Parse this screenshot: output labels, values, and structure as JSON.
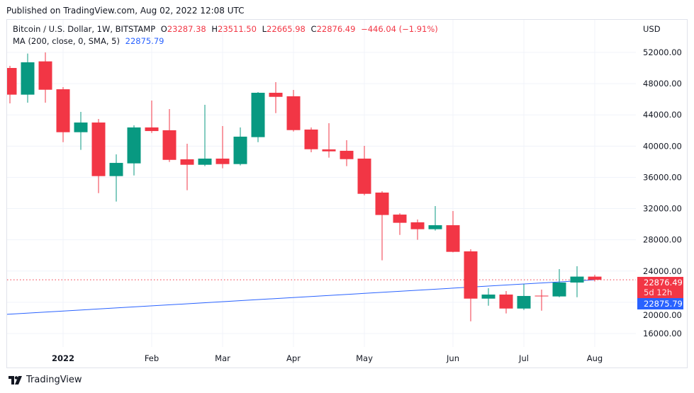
{
  "header": {
    "published": "Published on TradingView.com, Aug 02, 2022 12:08 UTC"
  },
  "legend": {
    "symbol": "Bitcoin / U.S. Dollar, 1W, BITSTAMP",
    "o_label": "O",
    "o": "23287.38",
    "h_label": "H",
    "h": "23511.50",
    "l_label": "L",
    "l": "22665.98",
    "c_label": "C",
    "c": "22876.49",
    "change": "−446.04 (−1.91%)",
    "ma_label": "MA (200, close, 0, SMA, 5)",
    "ma_value": "22875.79"
  },
  "price_axis": {
    "currency": "USD"
  },
  "price_labels": {
    "last": "22876.49",
    "countdown": "5d 12h",
    "ma": "22875.79"
  },
  "footer": {
    "brand": "TradingView"
  },
  "colors": {
    "up": "#089981",
    "down": "#f23645",
    "ma": "#2962ff",
    "grid": "#f0f3fa"
  },
  "chart_data": {
    "type": "candlestick",
    "interval": "1W",
    "ylim": [
      14000,
      54000
    ],
    "y_ticks": [
      "52000.00",
      "48000.00",
      "44000.00",
      "40000.00",
      "36000.00",
      "32000.00",
      "28000.00",
      "24000.00",
      "20000.00",
      "16000.00"
    ],
    "x_ticks": [
      {
        "label": "2022",
        "candle": 3,
        "bold": true
      },
      {
        "label": "Feb",
        "candle": 8
      },
      {
        "label": "Mar",
        "candle": 12
      },
      {
        "label": "Apr",
        "candle": 16
      },
      {
        "label": "May",
        "candle": 20
      },
      {
        "label": "Jun",
        "candle": 25
      },
      {
        "label": "Jul",
        "candle": 29
      },
      {
        "label": "Aug",
        "candle": 33
      }
    ],
    "candles": [
      [
        50005,
        50280,
        45470,
        46590
      ],
      [
        46590,
        51850,
        45560,
        50730
      ],
      [
        50850,
        52000,
        45560,
        47220
      ],
      [
        47280,
        47560,
        40510,
        41780
      ],
      [
        41780,
        44380,
        39520,
        43020
      ],
      [
        43020,
        43480,
        33980,
        36160
      ],
      [
        36160,
        38940,
        32900,
        37850
      ],
      [
        37790,
        42660,
        36250,
        42390
      ],
      [
        42390,
        45830,
        41690,
        41930
      ],
      [
        42030,
        44750,
        37970,
        38240
      ],
      [
        38310,
        40300,
        34350,
        37610
      ],
      [
        37610,
        45290,
        37430,
        38400
      ],
      [
        38400,
        42570,
        37160,
        37700
      ],
      [
        37700,
        42390,
        37520,
        41210
      ],
      [
        41150,
        46920,
        40510,
        46830
      ],
      [
        46830,
        48190,
        44230,
        46310
      ],
      [
        46380,
        47190,
        41870,
        42050
      ],
      [
        42120,
        42390,
        39210,
        39600
      ],
      [
        39580,
        42930,
        38520,
        39330
      ],
      [
        39400,
        40760,
        37430,
        38330
      ],
      [
        38400,
        40030,
        33710,
        33890
      ],
      [
        34050,
        34230,
        25370,
        31180
      ],
      [
        31230,
        31400,
        28630,
        30180
      ],
      [
        30240,
        30600,
        28000,
        29360
      ],
      [
        29360,
        32320,
        29180,
        29870
      ],
      [
        29870,
        31690,
        26400,
        26460
      ],
      [
        26520,
        26790,
        17570,
        20470
      ],
      [
        20470,
        21800,
        19560,
        20990
      ],
      [
        20990,
        21440,
        18570,
        19200
      ],
      [
        19200,
        22350,
        19020,
        20810
      ],
      [
        20850,
        21620,
        18930,
        20800
      ],
      [
        20750,
        24250,
        20650,
        22530
      ],
      [
        22530,
        24620,
        20650,
        23290
      ],
      [
        23287.38,
        23511.5,
        22665.98,
        22876.49
      ]
    ],
    "ma_points": [
      {
        "candle": -0.2,
        "value": 18450
      },
      {
        "candle": 33,
        "value": 22875.79
      }
    ]
  }
}
